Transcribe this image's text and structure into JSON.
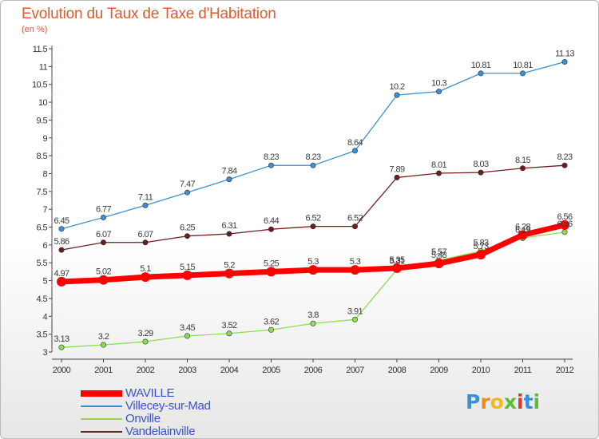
{
  "title": "Evolution du Taux de Taxe d'Habitation",
  "subtitle": "(en %)",
  "logo_text": "Proxiti",
  "chart_data": {
    "type": "line",
    "title": "Evolution du Taux de Taxe d'Habitation",
    "subtitle": "(en %)",
    "x": [
      "2000",
      "2001",
      "2002",
      "2003",
      "2004",
      "2005",
      "2006",
      "2007",
      "2008",
      "2009",
      "2010",
      "2011",
      "2012"
    ],
    "ylim": [
      3,
      11.5
    ],
    "yticks": [
      "3",
      "3.5",
      "4",
      "4.5",
      "5",
      "5.5",
      "6",
      "6.5",
      "7",
      "7.5",
      "8",
      "8.5",
      "9",
      "9.5",
      "10",
      "10.5",
      "11",
      "11.5"
    ],
    "grid": false,
    "legend_position": "bottom-left",
    "series": [
      {
        "name": "WAVILLE",
        "color": "#ff0000",
        "values": [
          4.97,
          5.02,
          5.1,
          5.15,
          5.2,
          5.25,
          5.3,
          5.3,
          5.35,
          5.48,
          5.73,
          6.28,
          6.56
        ],
        "labels": [
          "4.97",
          "5.02",
          "5.1",
          "5.15",
          "5.2",
          "5.25",
          "5.3",
          "5.3",
          "5.35",
          "5.48",
          "5.73",
          "6.28",
          "6.56"
        ]
      },
      {
        "name": "Villecey-sur-Mad",
        "color": "#3b8fd3",
        "values": [
          6.45,
          6.77,
          7.11,
          7.47,
          7.84,
          8.23,
          8.23,
          8.64,
          10.2,
          10.3,
          10.81,
          10.81,
          11.13
        ],
        "labels": [
          "6.45",
          "6.77",
          "7.11",
          "7.47",
          "7.84",
          "8.23",
          "8.23",
          "8.64",
          "10.2",
          "10.3",
          "10.81",
          "10.81",
          "11.13"
        ]
      },
      {
        "name": "Onville",
        "color": "#8fdc4f",
        "values": [
          3.13,
          3.2,
          3.29,
          3.45,
          3.52,
          3.62,
          3.8,
          3.91,
          5.31,
          5.57,
          5.83,
          6.19,
          6.36
        ],
        "labels": [
          "3.13",
          "3.2",
          "3.29",
          "3.45",
          "3.52",
          "3.62",
          "3.8",
          "3.91",
          "5.31",
          "5.57",
          "5.83",
          "6.19",
          "6.36"
        ]
      },
      {
        "name": "Vandelainville",
        "color": "#6b1d1d",
        "values": [
          5.86,
          6.07,
          6.07,
          6.25,
          6.31,
          6.44,
          6.52,
          6.52,
          7.89,
          8.01,
          8.03,
          8.15,
          8.23
        ],
        "labels": [
          "5.86",
          "6.07",
          "6.07",
          "6.25",
          "6.31",
          "6.44",
          "6.52",
          "6.52",
          "7.89",
          "8.01",
          "8.03",
          "8.15",
          "8.23"
        ]
      }
    ]
  }
}
